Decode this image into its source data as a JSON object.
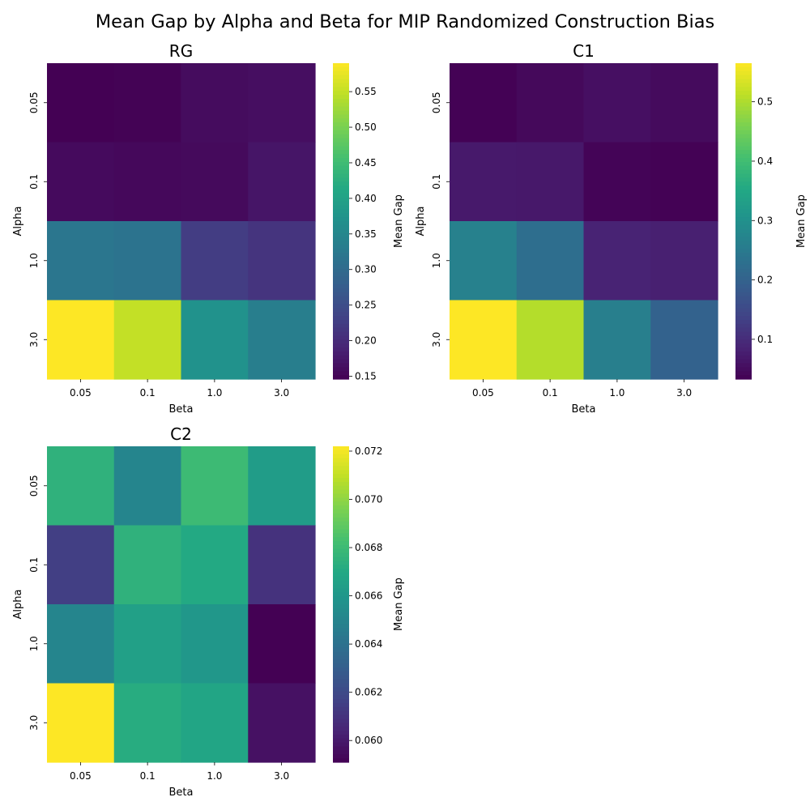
{
  "figure": {
    "title": "Mean Gap by Alpha and Beta for MIP Randomized Construction Bias"
  },
  "chart_data": [
    {
      "type": "heatmap",
      "title": "RG",
      "xlabel": "Beta",
      "ylabel": "Alpha",
      "colorbar_label": "Mean Gap",
      "colormap": "viridis",
      "x": [
        "0.05",
        "0.1",
        "1.0",
        "3.0"
      ],
      "y": [
        "0.05",
        "0.1",
        "1.0",
        "3.0"
      ],
      "values": [
        [
          0.146,
          0.148,
          0.16,
          0.163
        ],
        [
          0.158,
          0.155,
          0.157,
          0.172
        ],
        [
          0.32,
          0.315,
          0.225,
          0.212
        ],
        [
          0.59,
          0.55,
          0.37,
          0.335
        ]
      ],
      "vmin": 0.146,
      "vmax": 0.59,
      "colorbar_ticks": [
        "0.15",
        "0.20",
        "0.25",
        "0.30",
        "0.35",
        "0.40",
        "0.45",
        "0.50",
        "0.55"
      ]
    },
    {
      "type": "heatmap",
      "title": "C1",
      "xlabel": "Beta",
      "ylabel": "Alpha",
      "colorbar_label": "Mean Gap",
      "colormap": "viridis",
      "x": [
        "0.05",
        "0.1",
        "1.0",
        "3.0"
      ],
      "y": [
        "0.05",
        "0.1",
        "1.0",
        "3.0"
      ],
      "values": [
        [
          0.035,
          0.045,
          0.055,
          0.048
        ],
        [
          0.07,
          0.068,
          0.038,
          0.035
        ],
        [
          0.265,
          0.225,
          0.085,
          0.08
        ],
        [
          0.565,
          0.505,
          0.26,
          0.2
        ]
      ],
      "vmin": 0.033,
      "vmax": 0.565,
      "colorbar_ticks": [
        "0.1",
        "0.2",
        "0.3",
        "0.4",
        "0.5"
      ]
    },
    {
      "type": "heatmap",
      "title": "C2",
      "xlabel": "Beta",
      "ylabel": "Alpha",
      "colorbar_label": "Mean Gap",
      "colormap": "viridis",
      "x": [
        "0.05",
        "0.1",
        "1.0",
        "3.0"
      ],
      "y": [
        "0.05",
        "0.1",
        "1.0",
        "3.0"
      ],
      "values": [
        [
          0.0675,
          0.065,
          0.068,
          0.0663
        ],
        [
          0.0615,
          0.0675,
          0.067,
          0.061
        ],
        [
          0.065,
          0.0665,
          0.066,
          0.0591
        ],
        [
          0.0722,
          0.0672,
          0.0668,
          0.0597
        ]
      ],
      "vmin": 0.0591,
      "vmax": 0.0722,
      "colorbar_ticks": [
        "0.060",
        "0.062",
        "0.064",
        "0.066",
        "0.068",
        "0.070",
        "0.072"
      ]
    }
  ]
}
